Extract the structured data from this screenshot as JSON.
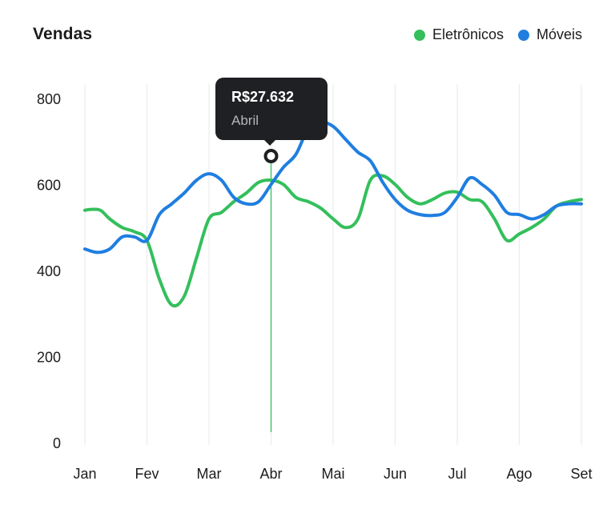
{
  "header": {
    "title": "Vendas"
  },
  "legend": [
    {
      "label": "Eletrônicos",
      "color": "#34bf5c"
    },
    {
      "label": "Móveis",
      "color": "#1f7ee0"
    }
  ],
  "tooltip": {
    "value": "R$27.632",
    "label": "Abril",
    "category_index": 3
  },
  "chart_data": {
    "type": "line",
    "title": "Vendas",
    "xlabel": "",
    "ylabel": "",
    "categories": [
      "Jan",
      "Fev",
      "Mar",
      "Abr",
      "Mai",
      "Jun",
      "Jul",
      "Ago",
      "Set"
    ],
    "y_ticks": [
      "0",
      "200",
      "400",
      "600",
      "800"
    ],
    "ylim": [
      0,
      800
    ],
    "grid": "vertical",
    "legend_position": "top-right",
    "series": [
      {
        "name": "Eletrônicos",
        "color": "#34bf5c",
        "x": [
          0,
          0.1,
          0.25,
          0.4,
          0.6,
          0.8,
          1,
          1.2,
          1.4,
          1.6,
          1.8,
          2,
          2.2,
          2.4,
          2.6,
          2.8,
          3,
          3.2,
          3.4,
          3.6,
          3.8,
          4,
          4.2,
          4.4,
          4.6,
          4.8,
          5,
          5.2,
          5.4,
          5.6,
          5.8,
          6,
          6.2,
          6.4,
          6.6,
          6.8,
          7,
          7.2,
          7.4,
          7.6,
          7.8,
          8
        ],
        "values": [
          540,
          542,
          540,
          520,
          500,
          490,
          470,
          380,
          320,
          340,
          430,
          520,
          535,
          560,
          580,
          605,
          610,
          600,
          570,
          560,
          545,
          520,
          500,
          520,
          610,
          620,
          600,
          570,
          555,
          565,
          580,
          582,
          565,
          560,
          520,
          470,
          485,
          500,
          520,
          550,
          560,
          565
        ]
      },
      {
        "name": "Móveis",
        "color": "#1f7ee0",
        "x": [
          0,
          0.2,
          0.4,
          0.6,
          0.8,
          1,
          1.2,
          1.4,
          1.6,
          1.8,
          2,
          2.2,
          2.4,
          2.6,
          2.8,
          3,
          3.2,
          3.4,
          3.6,
          3.8,
          4,
          4.2,
          4.4,
          4.6,
          4.8,
          5,
          5.2,
          5.4,
          5.6,
          5.8,
          6,
          6.2,
          6.4,
          6.6,
          6.8,
          7,
          7.2,
          7.4,
          7.6,
          7.8,
          8
        ],
        "values": [
          450,
          442,
          450,
          478,
          478,
          470,
          530,
          555,
          580,
          610,
          625,
          610,
          570,
          555,
          560,
          600,
          640,
          670,
          730,
          745,
          735,
          705,
          675,
          655,
          605,
          565,
          540,
          530,
          528,
          535,
          570,
          615,
          600,
          575,
          535,
          530,
          520,
          530,
          550,
          555,
          555
        ]
      }
    ]
  }
}
